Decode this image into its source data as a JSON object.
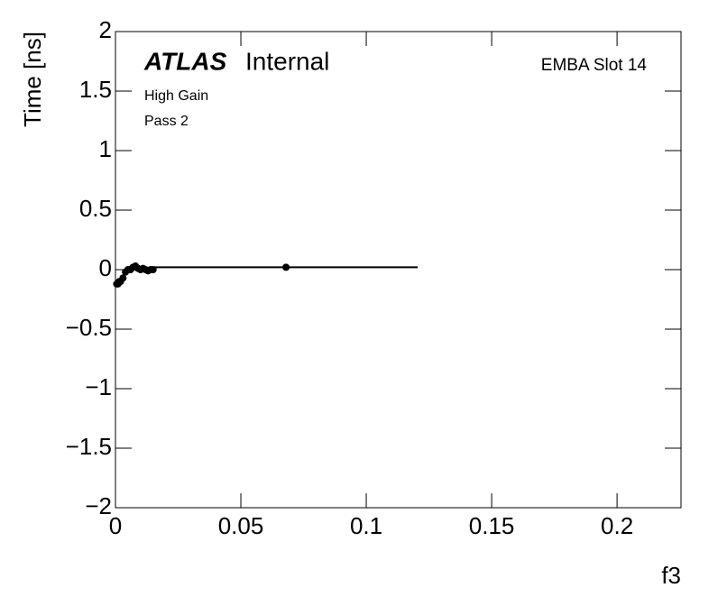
{
  "chart_data": {
    "type": "profile",
    "atlas_label": "ATLAS",
    "atlas_status": "Internal",
    "module": "EMBA Slot 14",
    "gain": "High Gain",
    "pass": "Pass 2",
    "xlabel": "f3",
    "ylabel": "Time [ns]",
    "x": [
      0.0005,
      0.001,
      0.0015,
      0.002,
      0.003,
      0.004,
      0.005,
      0.006,
      0.007,
      0.008,
      0.009,
      0.01,
      0.011,
      0.012,
      0.013,
      0.014,
      0.015,
      0.068
    ],
    "x_errors": [
      0.0005,
      0.0005,
      0.0005,
      0.0005,
      0.0005,
      0.0005,
      0.0005,
      0.0005,
      0.0005,
      0.0005,
      0.0005,
      0.0005,
      0.0005,
      0.0005,
      0.0005,
      0.0005,
      0.0005,
      0.0525
    ],
    "values": [
      -0.12,
      -0.12,
      -0.1,
      -0.1,
      -0.07,
      -0.02,
      0.0,
      0.0,
      0.02,
      0.03,
      0.01,
      0.0,
      0.01,
      0.0,
      -0.01,
      0.0,
      0.0,
      0.02
    ],
    "color": "#000000",
    "xlim": [
      0,
      0.2255
    ],
    "ylim": [
      -2,
      2
    ],
    "xticks": [
      0,
      0.05,
      0.1,
      0.15,
      0.2
    ],
    "yticks": [
      {
        "value": -2,
        "label": "−2"
      },
      {
        "value": -1.5,
        "label": "−1.5"
      },
      {
        "value": -1,
        "label": "−1"
      },
      {
        "value": -0.5,
        "label": "−0.5"
      },
      0,
      0.5,
      1,
      1.5,
      2
    ]
  }
}
